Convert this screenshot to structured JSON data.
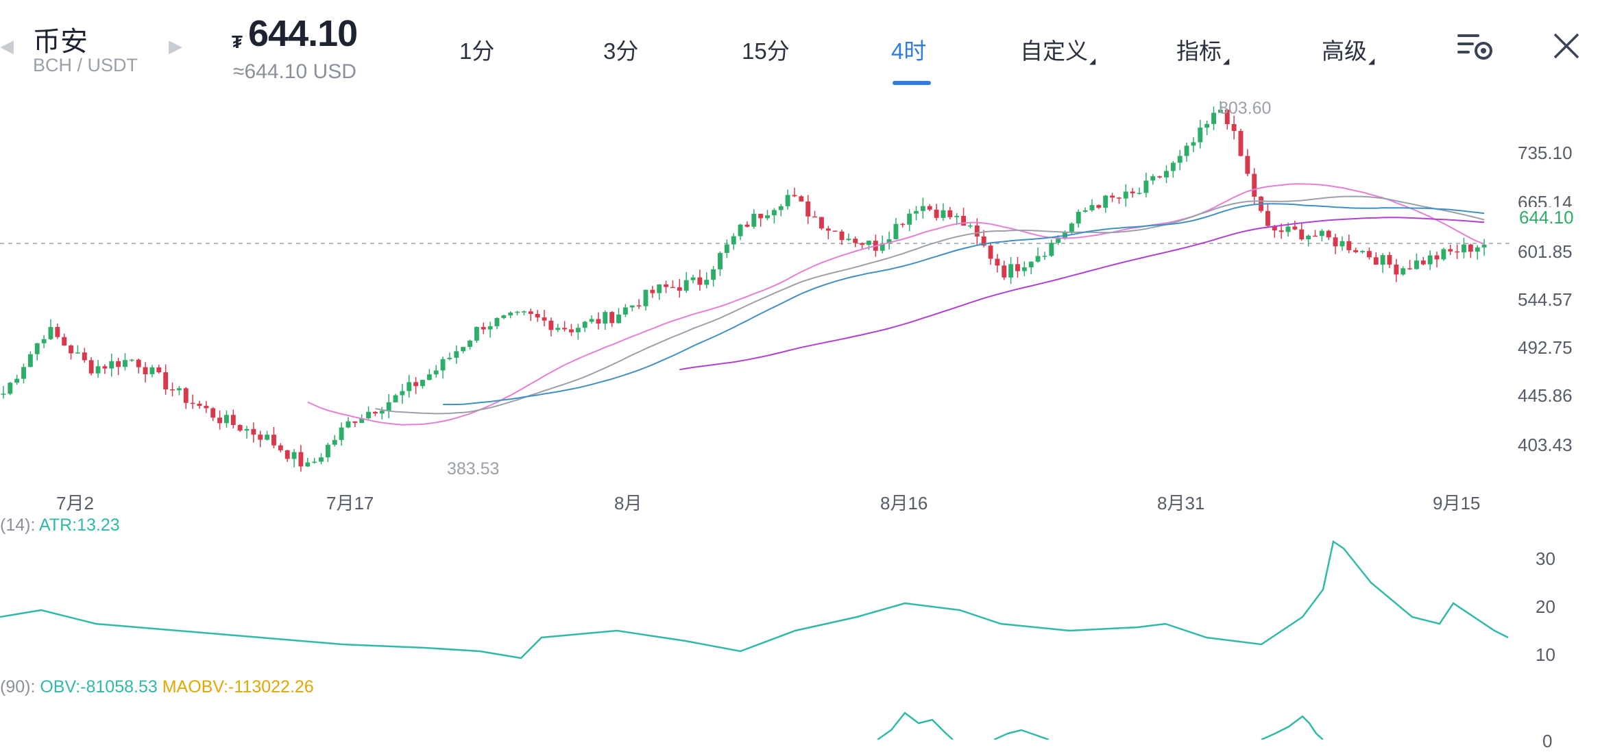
{
  "header": {
    "exchange": "币安",
    "pair": "BCH / USDT",
    "currency_symbol": "₮",
    "price": "644.10",
    "price_usd": "≈644.10 USD",
    "tabs": [
      {
        "label": "1分",
        "active": false
      },
      {
        "label": "3分",
        "active": false
      },
      {
        "label": "15分",
        "active": false
      },
      {
        "label": "4时",
        "active": true
      },
      {
        "label": "自定义",
        "active": false,
        "dropdown": true
      },
      {
        "label": "指标",
        "active": false,
        "dropdown": true
      },
      {
        "label": "高级",
        "active": false,
        "dropdown": true
      }
    ],
    "icons": {
      "settings": "chart-settings-icon",
      "close": "close-icon",
      "prev": "chevron-left-icon",
      "next": "chevron-right-icon"
    },
    "accent_color": "#2f7de1"
  },
  "main_chart": {
    "y_ticks": [
      "735.10",
      "665.14",
      "601.85",
      "544.57",
      "492.75",
      "445.86",
      "403.43"
    ],
    "x_ticks": [
      "7月2",
      "7月17",
      "8月",
      "8月16",
      "8月31",
      "9月15"
    ],
    "high_label": "803.60",
    "low_label": "383.53",
    "current_price": "644.10",
    "up_color": "#2cae69",
    "down_color": "#d8384b"
  },
  "atr": {
    "prefix": "(14): ",
    "label": "ATR:13.23",
    "y_ticks": [
      "30",
      "20",
      "10"
    ],
    "color": "#2fb9a6"
  },
  "obv": {
    "prefix": "(90): ",
    "obv_label": "OBV:-81058.53",
    "maobv_label": "MAOBV:-113022.26",
    "y_ticks": [
      "0"
    ],
    "obv_color": "#2fb9a6",
    "maobv_color": "#e0a800"
  },
  "chart_data": {
    "type": "candlestick",
    "symbol": "BCH / USDT",
    "interval": "4时",
    "x": [
      "7月2",
      "7月17",
      "8月",
      "8月16",
      "8月31",
      "9月15"
    ],
    "approx_close": [
      470,
      545,
      500,
      510,
      470,
      440,
      420,
      383.53,
      440,
      465,
      500,
      550,
      560,
      545,
      560,
      590,
      600,
      665,
      700,
      660,
      640,
      690,
      670,
      610,
      640,
      690,
      700,
      740,
      803.6,
      660,
      655,
      640,
      615,
      630,
      644.1
    ],
    "ylim": [
      383.53,
      803.6
    ],
    "series": [
      {
        "name": "ATR",
        "current": 13.23
      },
      {
        "name": "OBV",
        "current": -81058.53
      },
      {
        "name": "MAOBV",
        "current": -113022.26
      }
    ]
  }
}
